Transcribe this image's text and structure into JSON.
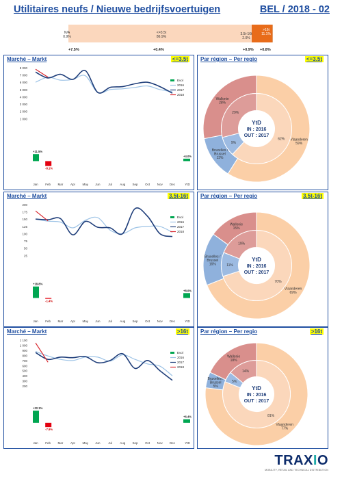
{
  "header": {
    "title": "Utilitaires neufs / Nieuwe bedrijfsvoertuigen",
    "code": "BEL / 2018 - 02"
  },
  "top_bar": {
    "segments": [
      {
        "label": "N/A",
        "value": "0.9%",
        "pct": 0.9,
        "color": "#fbd7bd"
      },
      {
        "label": "<=3.5t",
        "value": "86.9%",
        "pct": 86.9,
        "color": "#fbd7bd"
      },
      {
        "label": "3.5t-16t",
        "value": "2.0%",
        "pct": 2.0,
        "color": "#fbd7bd"
      },
      {
        "label": ">16t",
        "value": "11.1%",
        "pct": 11.1,
        "color": "#e86c1a"
      }
    ],
    "evolutions": [
      "+7.5%",
      "+0.4%",
      "+0.9%",
      "+0.8%"
    ]
  },
  "sections": [
    {
      "market_title": "Marché – Markt",
      "region_title": "Par région – Per regio",
      "category": "<=3.5t",
      "chart_data": {
        "type": "line",
        "months": [
          "Jan",
          "Feb",
          "Mar",
          "Apr",
          "May",
          "Jun",
          "Jul",
          "Aug",
          "Sep",
          "Oct",
          "Nov",
          "Dec"
        ],
        "ytd_label": "YtD",
        "yticks": [
          "8 000",
          "7 000",
          "6 000",
          "5 000",
          "4 000",
          "3 000",
          "2 000",
          "1 000"
        ],
        "ylim": [
          0,
          8000
        ],
        "legend": [
          "Evol",
          "2016",
          "2017",
          "2018"
        ],
        "series": [
          {
            "name": "2016",
            "values": [
              6000,
              6700,
              6300,
              6400,
              6900,
              4600,
              5000,
              5100,
              5300,
              5500,
              5000,
              4700
            ]
          },
          {
            "name": "2017",
            "values": [
              7400,
              6600,
              7100,
              6400,
              7600,
              4600,
              5300,
              5400,
              5800,
              6000,
              5400,
              4500
            ]
          },
          {
            "name": "2018",
            "values": [
              7800,
              6700
            ]
          }
        ],
        "evol": [
          {
            "month": "Jan",
            "pct": 11.5,
            "label": "+11.5%"
          },
          {
            "month": "Feb",
            "pct": -8.1,
            "label": "-8.1%"
          }
        ],
        "evol_ytd": {
          "pct": 4.0,
          "label": "+4.0%"
        }
      },
      "pie": {
        "center_title": "YtD",
        "center_in": "IN : 2016",
        "center_out": "OUT : 2017",
        "outer": [
          {
            "name": "Vlaanderen",
            "pct": 59,
            "label": "Vlaanderen\n59%"
          },
          {
            "name": "Bruxelles / Brussel",
            "pct": 13,
            "label": "Bruxelles /\nBrussel\n13%"
          },
          {
            "name": "Wallonie",
            "pct": 28,
            "label": "Wallonie\n28%"
          }
        ],
        "inner": [
          {
            "name": "Vlaanderen",
            "pct": 62,
            "label": "62%"
          },
          {
            "name": "Bruxelles / Brussel",
            "pct": 9,
            "label": "9%"
          },
          {
            "name": "Wallonie",
            "pct": 29,
            "label": "29%"
          }
        ]
      }
    },
    {
      "market_title": "Marché – Markt",
      "region_title": "Par région – Per regio",
      "category": "3.5t-16t",
      "chart_data": {
        "type": "line",
        "months": [
          "Jan",
          "Feb",
          "Mar",
          "Apr",
          "May",
          "Jun",
          "Jul",
          "Aug",
          "Sep",
          "Oct",
          "Nov",
          "Dec"
        ],
        "ytd_label": "YtD",
        "yticks": [
          "200",
          "175",
          "150",
          "125",
          "100",
          "75",
          "50",
          "25"
        ],
        "ylim": [
          0,
          200
        ],
        "legend": [
          "Evol",
          "2016",
          "2017",
          "2018"
        ],
        "series": [
          {
            "name": "2016",
            "values": [
              150,
              143,
              140,
              120,
              146,
              155,
              112,
              100,
              120,
              125,
              125,
              105
            ]
          },
          {
            "name": "2017",
            "values": [
              150,
              148,
              152,
              96,
              142,
              122,
              120,
              100,
              186,
              160,
              100,
              90
            ]
          },
          {
            "name": "2018",
            "values": [
              178,
              144
            ]
          }
        ],
        "evol": [
          {
            "month": "Jan",
            "pct": 18.8,
            "label": "+18.8%"
          },
          {
            "month": "Feb",
            "pct": -1.4,
            "label": "-1.4%"
          }
        ],
        "evol_ytd": {
          "pct": 8.0,
          "label": "+8.0%"
        }
      },
      "pie": {
        "center_title": "YtD",
        "center_in": "IN : 2016",
        "center_out": "OUT : 2017",
        "outer": [
          {
            "name": "Vlaanderen",
            "pct": 69,
            "label": "Vlaanderen\n69%"
          },
          {
            "name": "Bruxelles / Brussel",
            "pct": 16,
            "label": "Bruxelles /\nBrussel\n16%"
          },
          {
            "name": "Wallonie",
            "pct": 15,
            "label": "Wallonie\n15%"
          }
        ],
        "inner": [
          {
            "name": "Vlaanderen",
            "pct": 70,
            "label": "70%"
          },
          {
            "name": "Bruxelles / Brussel",
            "pct": 11,
            "label": "11%"
          },
          {
            "name": "Wallonie",
            "pct": 19,
            "label": "19%"
          }
        ]
      }
    },
    {
      "market_title": "Marché – Markt",
      "region_title": "Par région – Per regio",
      "category": ">16t",
      "chart_data": {
        "type": "line",
        "months": [
          "Jan",
          "Feb",
          "Mar",
          "Apr",
          "May",
          "Jun",
          "Jul",
          "Aug",
          "Sep",
          "Oct",
          "Nov",
          "Dec"
        ],
        "ytd_label": "YtD",
        "yticks": [
          "1 100",
          "1 000",
          "900",
          "800",
          "700",
          "600",
          "500",
          "400",
          "300",
          "200"
        ],
        "ylim": [
          200,
          1100
        ],
        "legend": [
          "Evol",
          "2016",
          "2017",
          "2018"
        ],
        "series": [
          {
            "name": "2016",
            "values": [
              900,
              820,
              760,
              740,
              800,
              800,
              730,
              840,
              760,
              680,
              640,
              470
            ]
          },
          {
            "name": "2017",
            "values": [
              880,
              760,
              800,
              790,
              810,
              700,
              740,
              860,
              600,
              740,
              560,
              390
            ]
          },
          {
            "name": "2018",
            "values": [
              1050,
              710
            ]
          }
        ],
        "evol": [
          {
            "month": "Jan",
            "pct": 22.1,
            "label": "+22.1%"
          },
          {
            "month": "Feb",
            "pct": -7.9,
            "label": "-7.9%"
          }
        ],
        "evol_ytd": {
          "pct": 6.4,
          "label": "+6.4%"
        }
      },
      "pie": {
        "center_title": "YtD",
        "center_in": "IN : 2016",
        "center_out": "OUT : 2017",
        "outer": [
          {
            "name": "Vlaanderen",
            "pct": 77,
            "label": "Vlaanderen\n77%"
          },
          {
            "name": "Bruxelles / Brussel",
            "pct": 5,
            "label": "Bruxelles /\nBrussel\n5%"
          },
          {
            "name": "Wallonie",
            "pct": 18,
            "label": "Wallonie\n18%"
          }
        ],
        "inner": [
          {
            "name": "Vlaanderen",
            "pct": 81,
            "label": "81%"
          },
          {
            "name": "Bruxelles / Brussel",
            "pct": 5,
            "label": "5%"
          },
          {
            "name": "Wallonie",
            "pct": 14,
            "label": "14%"
          }
        ]
      }
    }
  ],
  "colors": {
    "s2016": "#9dc3e6",
    "s2017": "#1f3e7a",
    "s2018": "#d9272e",
    "evol_pos": "#00a651",
    "evol_neg": "#e3000f",
    "vlaanderen": "#fbcfa7",
    "brussel": "#8fb1dc",
    "wallonie": "#d98f8c",
    "vlaanderen_in": "#fbd7bb",
    "brussel_in": "#9dbbe2",
    "wallonie_in": "#dd9c99"
  },
  "logo": {
    "name_a": "TRAX",
    "name_o": "I",
    "name_b": "O",
    "tagline": "MOBILITY, RETAIL AND TECHNICAL DISTRIBUTION"
  }
}
